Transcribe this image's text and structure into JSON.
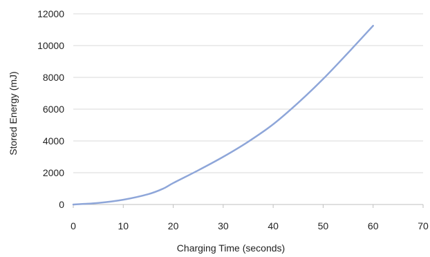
{
  "chart_data": {
    "type": "line",
    "title": "",
    "xlabel": "Charging Time (seconds)",
    "ylabel": "Stored Energy (mJ)",
    "xlim": [
      0,
      70
    ],
    "ylim": [
      0,
      12000
    ],
    "x_ticks": [
      0,
      10,
      20,
      30,
      40,
      50,
      60,
      70
    ],
    "y_ticks": [
      0,
      2000,
      4000,
      6000,
      8000,
      10000,
      12000
    ],
    "x_tick_labels": [
      "0",
      "10",
      "20",
      "30",
      "40",
      "50",
      "60",
      "70"
    ],
    "y_tick_labels": [
      "0",
      "2000",
      "4000",
      "6000",
      "8000",
      "10000",
      "12000"
    ],
    "grid": "horizontal",
    "legend": "none",
    "series": [
      {
        "color": "#8ea6d9",
        "x": [
          0,
          5,
          10,
          15,
          18,
          20,
          25,
          30,
          35,
          40,
          45,
          50,
          55,
          60
        ],
        "y": [
          0,
          100,
          300,
          650,
          1000,
          1350,
          2150,
          3000,
          3950,
          5050,
          6400,
          7900,
          9550,
          11250
        ]
      }
    ]
  }
}
